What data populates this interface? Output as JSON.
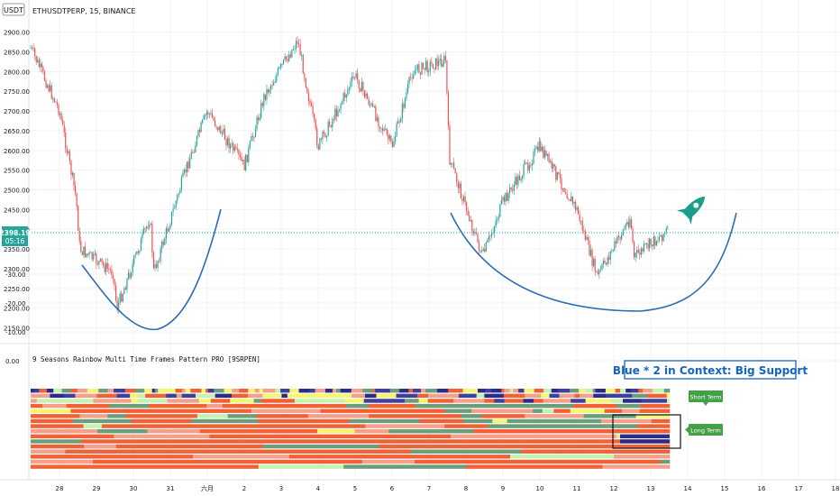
{
  "header": {
    "currency_badge": "USDT",
    "symbol_line": "ETHUSDTPERP, 15, BINANCE"
  },
  "price_panel": {
    "current_price": "2398.19",
    "countdown": "05:16",
    "y_ticks": [
      "2900.00",
      "2850.00",
      "2800.00",
      "2750.00",
      "2700.00",
      "2650.00",
      "2600.00",
      "2550.00",
      "2500.00",
      "2450.00",
      "2400.00",
      "2350.00",
      "2300.00",
      "2250.00",
      "2200.00",
      "2150.00"
    ]
  },
  "indicator_panel": {
    "name": "9 Seasons Rainbow Multi Time Frames Pattern PRO [9SRPEN]",
    "y_ticks": [
      "0.00",
      "-10.00",
      "-20.00",
      "-30.00"
    ]
  },
  "annotations": {
    "callout": "Blue * 2 in Context: Big Support",
    "short_term_label": "Short Term",
    "long_term_label": "Long Term"
  },
  "x_axis": {
    "ticks": [
      "28",
      "29",
      "30",
      "31",
      "六月",
      "2",
      "3",
      "4",
      "5",
      "6",
      "7",
      "8",
      "9",
      "10",
      "11",
      "12",
      "13",
      "14",
      "15",
      "16",
      "17",
      "18"
    ]
  },
  "colors": {
    "up_candle": "#26a69a",
    "down_candle": "#ef5350",
    "price_line": "#26a69a",
    "curve": "#2a6db5",
    "callout_text": "#1565c0",
    "label_green": "#43a047",
    "rocket": "#1e9e88"
  },
  "chart_data": {
    "type": "candlestick",
    "price_axis": {
      "ylim": [
        2130,
        2920
      ]
    },
    "indicator_axis": {
      "ylim": [
        -40,
        5
      ]
    },
    "price_path": [
      {
        "x": "28",
        "y": 2860
      },
      {
        "x": "28",
        "y": 2700
      },
      {
        "x": "28",
        "y": 2480
      },
      {
        "x": "29",
        "y": 2350
      },
      {
        "x": "29",
        "y": 2290
      },
      {
        "x": "30",
        "y": 2200
      },
      {
        "x": "30",
        "y": 2430
      },
      {
        "x": "31",
        "y": 2290
      },
      {
        "x": "31",
        "y": 2560
      },
      {
        "x": "六月",
        "y": 2700
      },
      {
        "x": "2",
        "y": 2560
      },
      {
        "x": "3",
        "y": 2740
      },
      {
        "x": "3",
        "y": 2880
      },
      {
        "x": "4",
        "y": 2610
      },
      {
        "x": "5",
        "y": 2790
      },
      {
        "x": "6",
        "y": 2610
      },
      {
        "x": "7",
        "y": 2800
      },
      {
        "x": "7",
        "y": 2830
      },
      {
        "x": "8",
        "y": 2580
      },
      {
        "x": "8",
        "y": 2330
      },
      {
        "x": "9",
        "y": 2470
      },
      {
        "x": "10",
        "y": 2610
      },
      {
        "x": "11",
        "y": 2450
      },
      {
        "x": "12",
        "y": 2280
      },
      {
        "x": "12",
        "y": 2430
      },
      {
        "x": "13",
        "y": 2330
      },
      {
        "x": "13",
        "y": 2398.19
      }
    ],
    "indicator_bands": {
      "count": 16,
      "palette": [
        "#f26036",
        "#f5a08a",
        "#6b9e7a",
        "#c4f2b0",
        "#f5f56e",
        "#3f3f9e",
        "#2b2b8c"
      ]
    }
  }
}
